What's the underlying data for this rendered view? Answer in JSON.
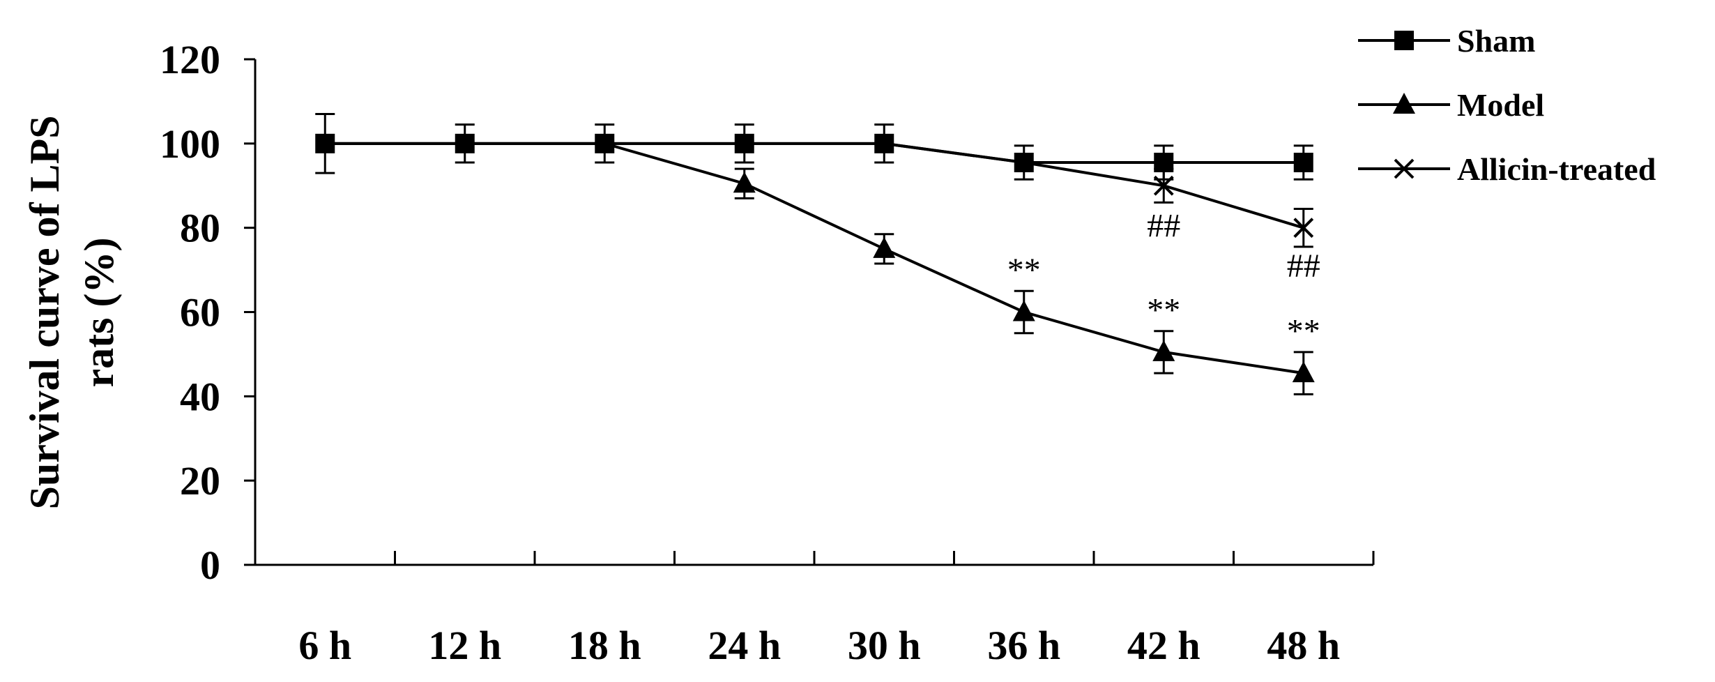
{
  "chart_data": {
    "type": "line",
    "title": "",
    "xlabel": "",
    "ylabel_lines": [
      "Survival curve of LPS",
      "rats (%)"
    ],
    "categories": [
      "6 h",
      "12 h",
      "18 h",
      "24 h",
      "30 h",
      "36 h",
      "42 h",
      "48 h"
    ],
    "yticks": [
      "0",
      "20",
      "40",
      "60",
      "80",
      "100",
      "120"
    ],
    "ylim": [
      0,
      120
    ],
    "grid": false,
    "legend_position": "top-right",
    "series": [
      {
        "name": "Sham",
        "marker": "square",
        "values": [
          100,
          100,
          100,
          100,
          100,
          95.5,
          95.5,
          95.5
        ],
        "errors": [
          7,
          4.5,
          4.5,
          4.5,
          4.5,
          4,
          4,
          4
        ]
      },
      {
        "name": "Model",
        "marker": "triangle",
        "values": [
          100,
          100,
          100,
          90.5,
          75,
          60,
          50.5,
          45.5
        ],
        "errors": [
          0,
          0,
          0,
          3.5,
          3.5,
          5,
          5,
          5
        ]
      },
      {
        "name": "Allicin-treated",
        "marker": "x",
        "values": [
          100,
          100,
          100,
          100,
          100,
          95.5,
          90,
          80
        ],
        "errors": [
          0,
          0,
          0,
          0,
          0,
          0,
          4,
          4.5
        ]
      }
    ],
    "annotations": [
      {
        "text": "**",
        "category_index": 5,
        "y": 70
      },
      {
        "text": "**",
        "category_index": 6,
        "y": 60.5
      },
      {
        "text": "**",
        "category_index": 7,
        "y": 55.5
      },
      {
        "text": "##",
        "category_index": 6,
        "y": 80.5
      },
      {
        "text": "##",
        "category_index": 7,
        "y": 71
      }
    ]
  }
}
